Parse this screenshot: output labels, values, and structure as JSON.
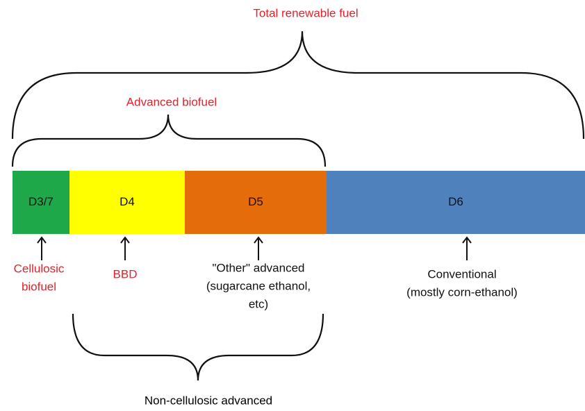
{
  "segments": [
    {
      "label": "D3/7",
      "color": "#1fa84a"
    },
    {
      "label": "D4",
      "color": "#ffff00"
    },
    {
      "label": "D5",
      "color": "#e46c0a"
    },
    {
      "label": "D6",
      "color": "#4f81bd"
    }
  ],
  "groups": {
    "total": "Total renewable fuel",
    "advanced": "Advanced biofuel",
    "non_cellulosic": "Non-cellulosic advanced"
  },
  "descriptions": [
    {
      "lines": [
        "Cellulosic",
        "biofuel"
      ],
      "color": "#e8202a"
    },
    {
      "lines": [
        "BBD"
      ],
      "color": "#e8202a"
    },
    {
      "lines": [
        "\"Other\" advanced",
        "(sugarcane ethanol,",
        "etc)"
      ],
      "color": "#111111"
    },
    {
      "lines": [
        "Conventional",
        "(mostly corn-ethanol)"
      ],
      "color": "#111111"
    }
  ]
}
